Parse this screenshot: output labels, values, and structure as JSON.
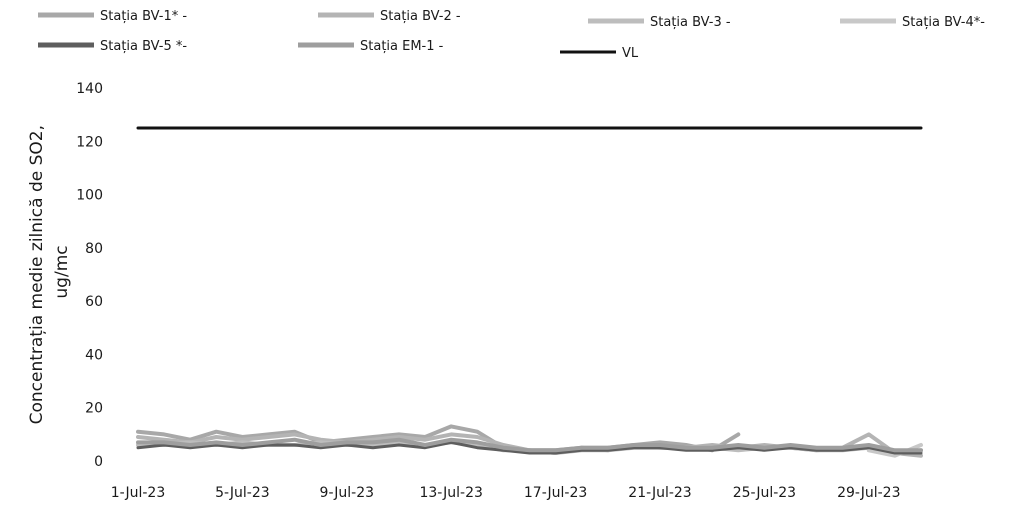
{
  "chart_data": {
    "type": "line",
    "ylabel": "Concentrația medie zilnică de SO2, ug/mc",
    "xlabel": "",
    "ylim": [
      0,
      140
    ],
    "yticks": [
      0,
      20,
      40,
      60,
      80,
      100,
      120,
      140
    ],
    "grid": false,
    "legend_position": "top",
    "x_tick_labels": [
      "1-Jul-23",
      "5-Jul-23",
      "9-Jul-23",
      "13-Jul-23",
      "17-Jul-23",
      "21-Jul-23",
      "25-Jul-23",
      "29-Jul-23"
    ],
    "x": [
      "1-Jul-23",
      "2-Jul-23",
      "3-Jul-23",
      "4-Jul-23",
      "5-Jul-23",
      "6-Jul-23",
      "7-Jul-23",
      "8-Jul-23",
      "9-Jul-23",
      "10-Jul-23",
      "11-Jul-23",
      "12-Jul-23",
      "13-Jul-23",
      "14-Jul-23",
      "15-Jul-23",
      "16-Jul-23",
      "17-Jul-23",
      "18-Jul-23",
      "19-Jul-23",
      "20-Jul-23",
      "21-Jul-23",
      "22-Jul-23",
      "23-Jul-23",
      "24-Jul-23",
      "25-Jul-23",
      "26-Jul-23",
      "27-Jul-23",
      "28-Jul-23",
      "29-Jul-23",
      "30-Jul-23",
      "31-Jul-23"
    ],
    "series": [
      {
        "name": "Stația BV-1* -",
        "color": "#a8a8a8",
        "width": 4,
        "values": [
          11,
          10,
          8,
          11,
          9,
          10,
          11,
          7,
          8,
          9,
          10,
          9,
          13,
          11,
          5,
          4,
          3,
          5,
          4,
          6,
          7,
          6,
          4,
          10,
          null,
          null,
          null,
          null,
          null,
          null,
          null
        ]
      },
      {
        "name": "Stația BV-2 -",
        "color": "#b4b4b4",
        "width": 4,
        "values": [
          9,
          8,
          7,
          9,
          8,
          9,
          10,
          8,
          7,
          8,
          9,
          8,
          10,
          9,
          6,
          4,
          4,
          5,
          5,
          6,
          5,
          5,
          6,
          5,
          6,
          5,
          4,
          5,
          10,
          3,
          2
        ]
      },
      {
        "name": "Stația BV-3 -",
        "color": "#bdbdbd",
        "width": 4,
        "values": [
          6,
          6,
          7,
          6,
          7,
          6,
          6,
          7,
          6,
          6,
          7,
          6,
          7,
          6,
          4,
          4,
          3,
          4,
          4,
          5,
          5,
          5,
          5,
          4,
          5,
          5,
          4,
          4,
          5,
          3,
          4
        ]
      },
      {
        "name": "Stația BV-4*-",
        "color": "#c8c8c8",
        "width": 4,
        "values": [
          null,
          null,
          null,
          null,
          null,
          null,
          null,
          null,
          null,
          null,
          null,
          null,
          null,
          null,
          null,
          null,
          null,
          null,
          null,
          null,
          null,
          null,
          null,
          null,
          null,
          null,
          null,
          null,
          4,
          2,
          6
        ]
      },
      {
        "name": "Stația BV-5 *-",
        "color": "#5e5e5e",
        "width": 3,
        "values": [
          5,
          6,
          5,
          6,
          5,
          6,
          6,
          5,
          6,
          5,
          6,
          5,
          7,
          5,
          4,
          3,
          3,
          4,
          4,
          5,
          5,
          4,
          4,
          5,
          4,
          5,
          4,
          4,
          5,
          3,
          3
        ]
      },
      {
        "name": "Stația EM-1 -",
        "color": "#9e9e9e",
        "width": 4,
        "values": [
          7,
          7,
          6,
          7,
          6,
          7,
          8,
          6,
          7,
          7,
          8,
          6,
          8,
          7,
          5,
          4,
          4,
          5,
          5,
          6,
          6,
          5,
          5,
          6,
          5,
          6,
          5,
          5,
          6,
          4,
          4
        ]
      },
      {
        "name": "VL",
        "color": "#111111",
        "width": 3,
        "values": [
          125,
          125,
          125,
          125,
          125,
          125,
          125,
          125,
          125,
          125,
          125,
          125,
          125,
          125,
          125,
          125,
          125,
          125,
          125,
          125,
          125,
          125,
          125,
          125,
          125,
          125,
          125,
          125,
          125,
          125,
          125
        ]
      }
    ]
  }
}
